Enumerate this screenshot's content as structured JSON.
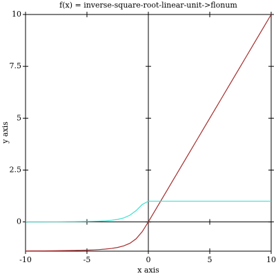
{
  "chart_data": {
    "type": "line",
    "title": "f(x) = inverse-square-root-linear-unit->flonum",
    "x_label": "x axis",
    "y_label": "y axis",
    "x": [
      -10,
      -9.5,
      -9,
      -8.5,
      -8,
      -7.5,
      -7,
      -6.5,
      -6,
      -5.5,
      -5,
      -4.5,
      -4,
      -3.5,
      -3,
      -2.5,
      -2,
      -1.5,
      -1,
      -0.5,
      0,
      0.5,
      1,
      1.5,
      2,
      2.5,
      3,
      3.5,
      4,
      4.5,
      5,
      5.5,
      6,
      6.5,
      7,
      7.5,
      8,
      8.5,
      9,
      9.5,
      10
    ],
    "series": [
      {
        "color": "#a52a2a",
        "values": [
          -1.4003,
          -1.3988,
          -1.3971,
          -1.395,
          -1.3926,
          -1.3897,
          -1.3862,
          -1.3819,
          -1.3765,
          -1.3697,
          -1.3608,
          -1.3492,
          -1.3333,
          -1.3112,
          -1.2792,
          -1.2309,
          -1.1547,
          -1.029,
          -0.8165,
          -0.4714,
          0,
          0.5,
          1,
          1.5,
          2,
          2.5,
          3,
          3.5,
          4,
          4.5,
          5,
          5.5,
          6,
          6.5,
          7,
          7.5,
          8,
          8.5,
          9,
          9.5,
          10
        ]
      },
      {
        "color": "#40e0d0",
        "values": [
          0.00275,
          0.00319,
          0.00374,
          0.00442,
          0.00528,
          0.00636,
          0.00777,
          0.00961,
          0.01207,
          0.01544,
          0.02016,
          0.02695,
          0.03704,
          0.05258,
          0.07752,
          0.1194,
          0.1925,
          0.3228,
          0.5443,
          0.8381,
          1,
          1,
          1,
          1,
          1,
          1,
          1,
          1,
          1,
          1,
          1,
          1,
          1,
          1,
          1,
          1,
          1,
          1,
          1,
          1,
          1
        ]
      }
    ],
    "xlim": [
      -10,
      10
    ],
    "ylim": [
      -1.41,
      10
    ],
    "xticks": [
      -10,
      -5,
      0,
      5,
      10
    ],
    "yticks": [
      0,
      2.5,
      5,
      7.5,
      10
    ]
  }
}
